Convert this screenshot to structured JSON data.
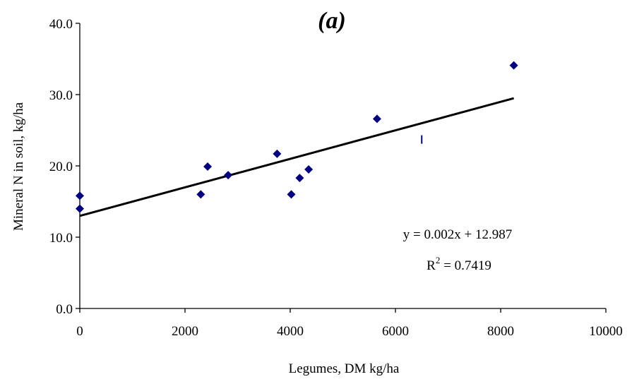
{
  "chart_data": {
    "type": "scatter",
    "title": "(a)",
    "xlabel": "Legumes, DM kg/ha",
    "ylabel": "Mineral N in soil, kg/ha",
    "xlim": [
      0,
      10000
    ],
    "ylim": [
      0,
      40
    ],
    "xticks": [
      "0",
      "2000",
      "4000",
      "6000",
      "8000",
      "10000"
    ],
    "yticks": [
      "0.0",
      "10.0",
      "20.0",
      "30.0",
      "40.0"
    ],
    "grid": false,
    "legend": "none",
    "marker_color": "#000080",
    "series": [
      {
        "values": [
          {
            "x": 0,
            "y": 15.8
          },
          {
            "x": 0,
            "y": 14.0
          },
          {
            "x": 2300,
            "y": 16.0
          },
          {
            "x": 2430,
            "y": 19.9
          },
          {
            "x": 2820,
            "y": 18.7
          },
          {
            "x": 3750,
            "y": 21.7
          },
          {
            "x": 4020,
            "y": 16.0
          },
          {
            "x": 4180,
            "y": 18.3
          },
          {
            "x": 4350,
            "y": 19.5
          },
          {
            "x": 5650,
            "y": 26.6
          },
          {
            "x": 8250,
            "y": 34.1
          }
        ]
      }
    ],
    "extra_mark": {
      "x": 6500,
      "y": 23.7
    },
    "trendline": {
      "x_start": 0,
      "x_end": 8250,
      "slope": 0.002,
      "intercept": 12.987,
      "color": "#000000"
    },
    "annotations": {
      "equation": "y = 0.002x + 12.987",
      "r2_prefix": "R",
      "r2_sup": "2",
      "r2_value": " = 0.7419"
    }
  }
}
